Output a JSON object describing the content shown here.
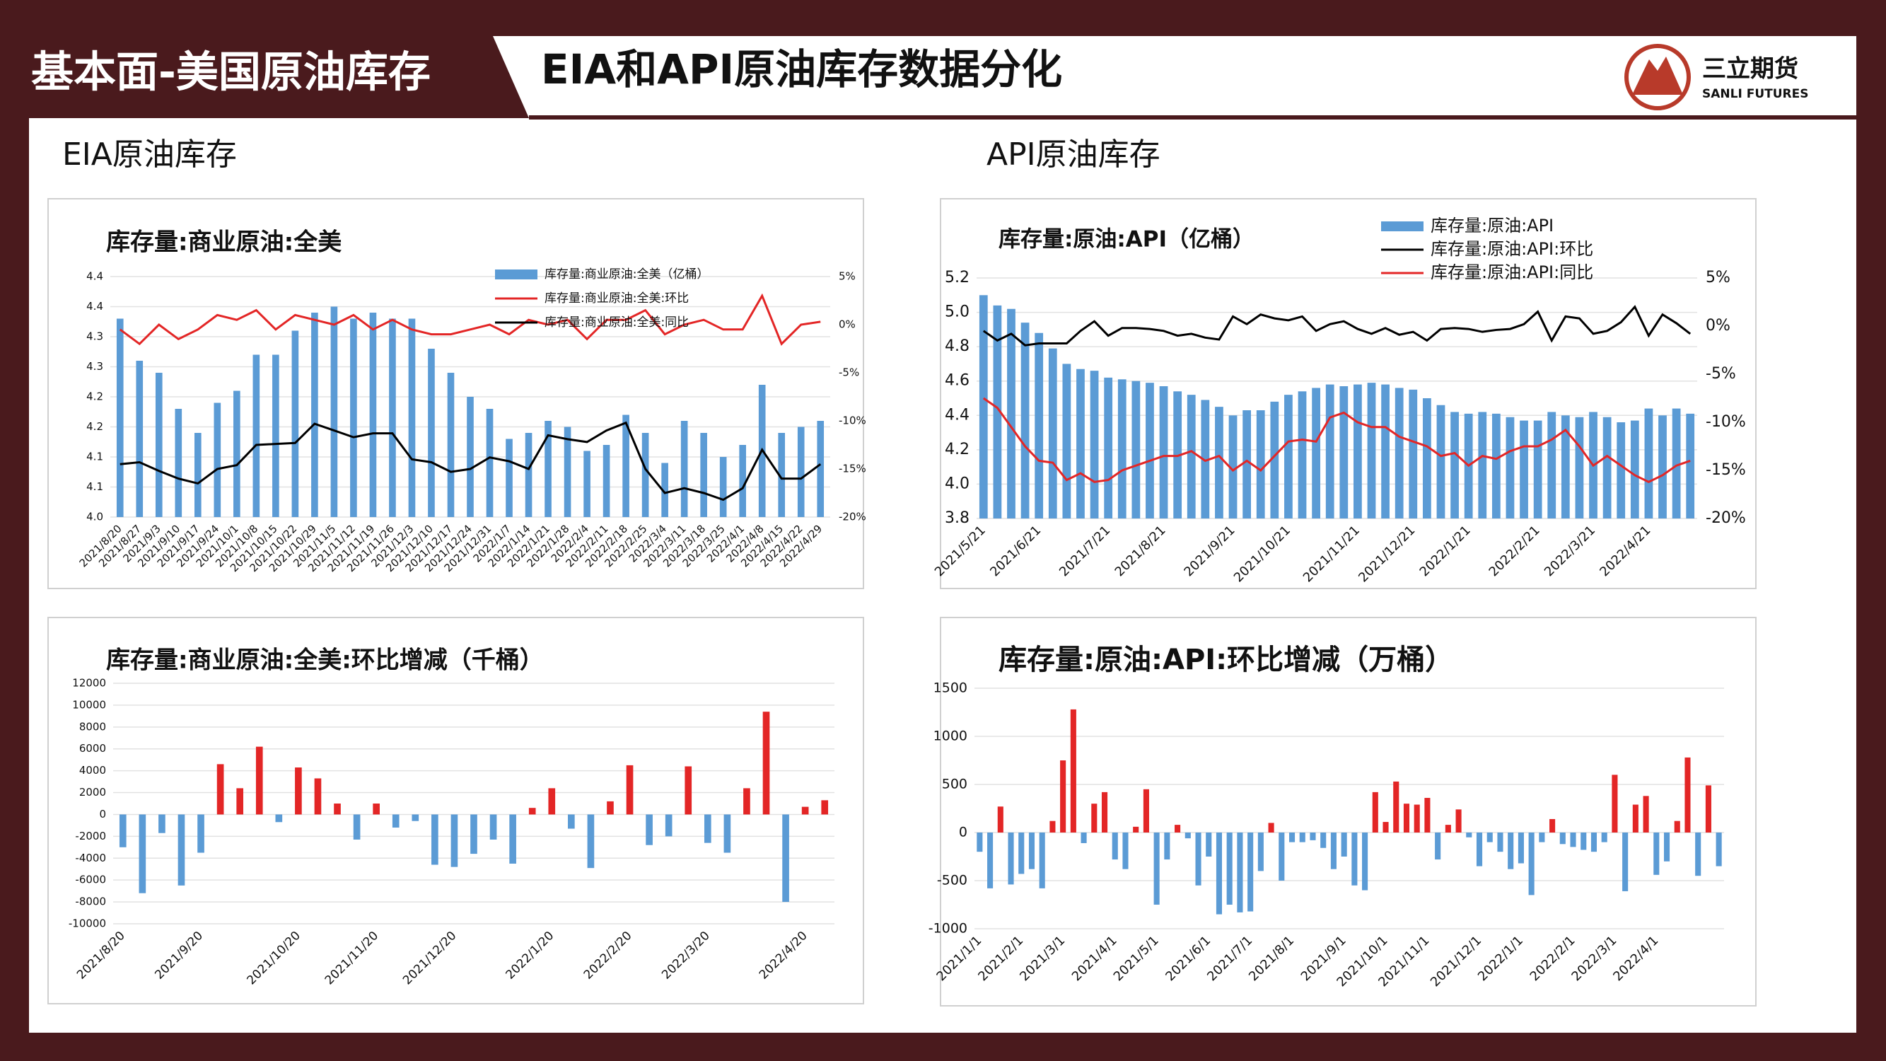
{
  "header": {
    "section": "基本面-美国原油库存",
    "title": "EIA和API原油库存数据分化"
  },
  "logo": {
    "name": "三立期货",
    "name_en": "SANLI FUTURES"
  },
  "panels": {
    "left": "EIA原油库存",
    "right": "API原油库存"
  },
  "chart_data": [
    {
      "type": "combo",
      "title": "库存量:商业原油:全美",
      "categories": [
        "2021/8/20",
        "2021/8/27",
        "2021/9/3",
        "2021/9/10",
        "2021/9/17",
        "2021/9/24",
        "2021/10/1",
        "2021/10/8",
        "2021/10/15",
        "2021/10/22",
        "2021/10/29",
        "2021/11/5",
        "2021/11/12",
        "2021/11/19",
        "2021/11/26",
        "2021/12/3",
        "2021/12/10",
        "2021/12/17",
        "2021/12/24",
        "2021/12/31",
        "2022/1/7",
        "2022/1/14",
        "2022/1/21",
        "2022/1/28",
        "2022/2/4",
        "2022/2/11",
        "2022/2/18",
        "2022/2/25",
        "2022/3/4",
        "2022/3/11",
        "2022/3/18",
        "2022/3/25",
        "2022/4/1",
        "2022/4/8",
        "2022/4/15",
        "2022/4/22",
        "2022/4/29"
      ],
      "series": [
        {
          "name": "库存量:商业原油:全美（亿桶）",
          "kind": "bar",
          "color": "#5b9bd5",
          "values": [
            4.33,
            4.26,
            4.24,
            4.18,
            4.14,
            4.19,
            4.21,
            4.27,
            4.27,
            4.31,
            4.34,
            4.35,
            4.33,
            4.34,
            4.33,
            4.33,
            4.28,
            4.24,
            4.2,
            4.18,
            4.13,
            4.14,
            4.16,
            4.15,
            4.11,
            4.12,
            4.17,
            4.14,
            4.09,
            4.16,
            4.14,
            4.1,
            4.12,
            4.22,
            4.14,
            4.15,
            4.16
          ]
        },
        {
          "name": "库存量:商业原油:全美:环比",
          "kind": "line",
          "axis": "y2",
          "color": "#e32626",
          "values": [
            -0.5,
            -2,
            0,
            -1.5,
            -0.5,
            1,
            0.5,
            1.5,
            -0.5,
            1,
            0.5,
            0,
            1,
            -0.5,
            0.5,
            -0.5,
            -1,
            -1,
            -0.5,
            0,
            -1,
            0.5,
            0,
            0.5,
            -1.5,
            0.5,
            0.5,
            1.5,
            -1,
            0,
            0.5,
            -0.5,
            -0.5,
            3,
            -2,
            0,
            0.3
          ]
        },
        {
          "name": "库存量:商业原油:全美:同比",
          "kind": "line",
          "axis": "y2",
          "color": "#000000",
          "values": [
            -14.5,
            -14.3,
            -15.2,
            -16,
            -16.5,
            -15,
            -14.6,
            -12.5,
            -12.4,
            -12.3,
            -10.3,
            -11,
            -11.7,
            -11.3,
            -11.3,
            -14,
            -14.3,
            -15.3,
            -15,
            -13.8,
            -14.2,
            -15,
            -11.5,
            -11.9,
            -12.2,
            -11,
            -10.2,
            -15,
            -17.5,
            -17,
            -17.5,
            -18.2,
            -17,
            -13,
            -16,
            -16,
            -14.5
          ]
        }
      ],
      "ylim": [
        4,
        4.4
      ],
      "yticks": [
        {
          "value": 4,
          "label": "4.0"
        },
        {
          "value": 4.05,
          "label": "4.1"
        },
        4.1,
        {
          "value": 4.15,
          "label": "4.2"
        },
        4.2,
        {
          "value": 4.25,
          "label": "4.3"
        },
        4.3,
        {
          "value": 4.35,
          "label": "4.4"
        },
        4.4
      ],
      "y2lim": [
        -20,
        5
      ],
      "y2ticks": [
        {
          "value": 5,
          "label": "5%"
        },
        {
          "value": 0,
          "label": "0%"
        },
        {
          "value": -5,
          "label": "-5%"
        },
        {
          "value": -10,
          "label": "-10%"
        },
        {
          "value": -15,
          "label": "-15%"
        },
        {
          "value": -20,
          "label": "-20%"
        }
      ],
      "grid": true
    },
    {
      "type": "combo",
      "title": "库存量:原油:API（亿桶）",
      "categories": [
        "2021/5/21",
        null,
        null,
        null,
        "2021/6/21",
        null,
        null,
        null,
        null,
        "2021/7/21",
        null,
        null,
        null,
        "2021/8/21",
        null,
        null,
        null,
        null,
        "2021/9/21",
        null,
        null,
        null,
        "2021/10/21",
        null,
        null,
        null,
        null,
        "2021/11/21",
        null,
        null,
        null,
        "2021/12/21",
        null,
        null,
        null,
        "2022/1/21",
        null,
        null,
        null,
        null,
        "2022/2/21",
        null,
        null,
        null,
        "2022/3/21",
        null,
        null,
        null,
        "2022/4/21",
        null,
        null,
        null
      ],
      "series": [
        {
          "name": "库存量:原油:API",
          "kind": "bar",
          "color": "#5b9bd5",
          "values": [
            5.1,
            5.04,
            5.02,
            4.94,
            4.88,
            4.79,
            4.7,
            4.67,
            4.66,
            4.62,
            4.61,
            4.6,
            4.59,
            4.57,
            4.54,
            4.52,
            4.49,
            4.45,
            4.4,
            4.43,
            4.43,
            4.48,
            4.52,
            4.54,
            4.56,
            4.58,
            4.57,
            4.58,
            4.59,
            4.58,
            4.56,
            4.55,
            4.5,
            4.46,
            4.42,
            4.41,
            4.42,
            4.41,
            4.39,
            4.37,
            4.37,
            4.42,
            4.4,
            4.39,
            4.42,
            4.39,
            4.36,
            4.37,
            4.44,
            4.4,
            4.44,
            4.41
          ]
        },
        {
          "name": "库存量:原油:API:环比",
          "kind": "line",
          "axis": "y2",
          "color": "#000000",
          "values": [
            -0.5,
            -1.5,
            -0.8,
            -2,
            -1.8,
            -1.8,
            -1.8,
            -0.5,
            0.5,
            -1,
            -0.2,
            -0.2,
            -0.3,
            -0.5,
            -1,
            -0.8,
            -1.2,
            -1.4,
            1,
            0.2,
            1.2,
            0.8,
            0.6,
            1,
            -0.5,
            0.2,
            0.5,
            -0.3,
            -0.8,
            -0.2,
            -0.9,
            -0.6,
            -1.5,
            -0.3,
            -0.2,
            -0.3,
            -0.6,
            -0.4,
            -0.3,
            0.2,
            1.5,
            -1.5,
            1,
            0.8,
            -0.8,
            -0.5,
            0.4,
            2,
            -1,
            1.2,
            0.3,
            -0.8
          ]
        },
        {
          "name": "库存量:原油:API:同比",
          "kind": "line",
          "axis": "y2",
          "color": "#e32626",
          "values": [
            -7.5,
            -8.5,
            -10.5,
            -12.5,
            -14,
            -14.2,
            -16,
            -15.3,
            -16.2,
            -16,
            -15,
            -14.5,
            -14,
            -13.5,
            -13.5,
            -13,
            -14,
            -13.5,
            -15,
            -14,
            -15,
            -13.5,
            -12,
            -11.8,
            -12,
            -9.5,
            -9,
            -10,
            -10.5,
            -10.5,
            -11.5,
            -12,
            -12.5,
            -13.5,
            -13.2,
            -14.5,
            -13.5,
            -13.8,
            -13,
            -12.5,
            -12.5,
            -11.8,
            -10.8,
            -12.5,
            -14.5,
            -13.5,
            -14.5,
            -15.5,
            -16.2,
            -15.5,
            -14.5,
            -14
          ]
        }
      ],
      "ylim": [
        3.8,
        5.2
      ],
      "yticks": [
        3.8,
        {
          "value": 4,
          "label": "4.0"
        },
        4.2,
        4.4,
        4.6,
        4.8,
        {
          "value": 5,
          "label": "5.0"
        },
        5.2
      ],
      "y2lim": [
        -20,
        5
      ],
      "y2ticks": [
        {
          "value": 5,
          "label": "5%"
        },
        {
          "value": 0,
          "label": "0%"
        },
        {
          "value": -5,
          "label": "-5%"
        },
        {
          "value": -10,
          "label": "-10%"
        },
        {
          "value": -15,
          "label": "-15%"
        },
        {
          "value": -20,
          "label": "-20%"
        }
      ],
      "grid": true
    },
    {
      "type": "bar",
      "title": "库存量:商业原油:全美:环比增减（千桶）",
      "categories": [
        "2021/8/20",
        null,
        null,
        null,
        "2021/9/20",
        null,
        null,
        null,
        null,
        "2021/10/20",
        null,
        null,
        null,
        "2021/11/20",
        null,
        null,
        null,
        "2021/12/20",
        null,
        null,
        null,
        null,
        "2022/1/20",
        null,
        null,
        null,
        "2022/2/20",
        null,
        null,
        null,
        "2022/3/20",
        null,
        null,
        null,
        null,
        "2022/4/20",
        null
      ],
      "values": [
        -3000,
        -7200,
        -1700,
        -6500,
        -3500,
        4600,
        2400,
        6200,
        -700,
        4300,
        3300,
        1000,
        -2300,
        1000,
        -1200,
        -600,
        -4600,
        -4800,
        -3600,
        -2300,
        -4500,
        600,
        2400,
        -1300,
        -4900,
        1200,
        4500,
        -2800,
        -2000,
        4400,
        -2600,
        -3500,
        2400,
        9400,
        -8000,
        700,
        1300
      ],
      "positive_color": "#e32626",
      "negative_color": "#5b9bd5",
      "ylim": [
        -10000,
        12000
      ],
      "yticks": [
        12000,
        10000,
        8000,
        6000,
        4000,
        2000,
        0,
        -2000,
        -4000,
        -6000,
        -8000,
        -10000
      ],
      "grid": true
    },
    {
      "type": "bar",
      "title": "库存量:原油:API:环比增减（万桶）",
      "categories": [
        "2021/1/1",
        null,
        null,
        null,
        "2021/2/1",
        null,
        null,
        null,
        "2021/3/1",
        null,
        null,
        null,
        null,
        "2021/4/1",
        null,
        null,
        null,
        "2021/5/1",
        null,
        null,
        null,
        null,
        "2021/6/1",
        null,
        null,
        null,
        "2021/7/1",
        null,
        null,
        null,
        "2021/8/1",
        null,
        null,
        null,
        null,
        "2021/9/1",
        null,
        null,
        null,
        "2021/10/1",
        null,
        null,
        null,
        "2021/11/1",
        null,
        null,
        null,
        null,
        "2021/12/1",
        null,
        null,
        null,
        "2022/1/1",
        null,
        null,
        null,
        null,
        "2022/2/1",
        null,
        null,
        null,
        "2022/3/1",
        null,
        null,
        null,
        "2022/4/1",
        null,
        null,
        null,
        null,
        null,
        null
      ],
      "values": [
        -200,
        -580,
        270,
        -540,
        -430,
        -380,
        -580,
        120,
        750,
        1280,
        -110,
        300,
        420,
        -280,
        -380,
        60,
        450,
        -750,
        -280,
        80,
        -60,
        -550,
        -250,
        -850,
        -750,
        -830,
        -820,
        -400,
        100,
        -500,
        -100,
        -100,
        -80,
        -160,
        -380,
        -250,
        -550,
        -600,
        420,
        110,
        530,
        300,
        290,
        360,
        -280,
        80,
        240,
        -50,
        -350,
        -100,
        -200,
        -380,
        -320,
        -650,
        -100,
        140,
        -120,
        -150,
        -180,
        -200,
        -100,
        600,
        -610,
        290,
        380,
        -440,
        -300,
        120,
        780,
        -450,
        490,
        -350
      ],
      "positive_color": "#e32626",
      "negative_color": "#5b9bd5",
      "ylim": [
        -1000,
        1500
      ],
      "yticks": [
        1500,
        1000,
        500,
        0,
        -500,
        -1000
      ],
      "grid": true
    }
  ]
}
